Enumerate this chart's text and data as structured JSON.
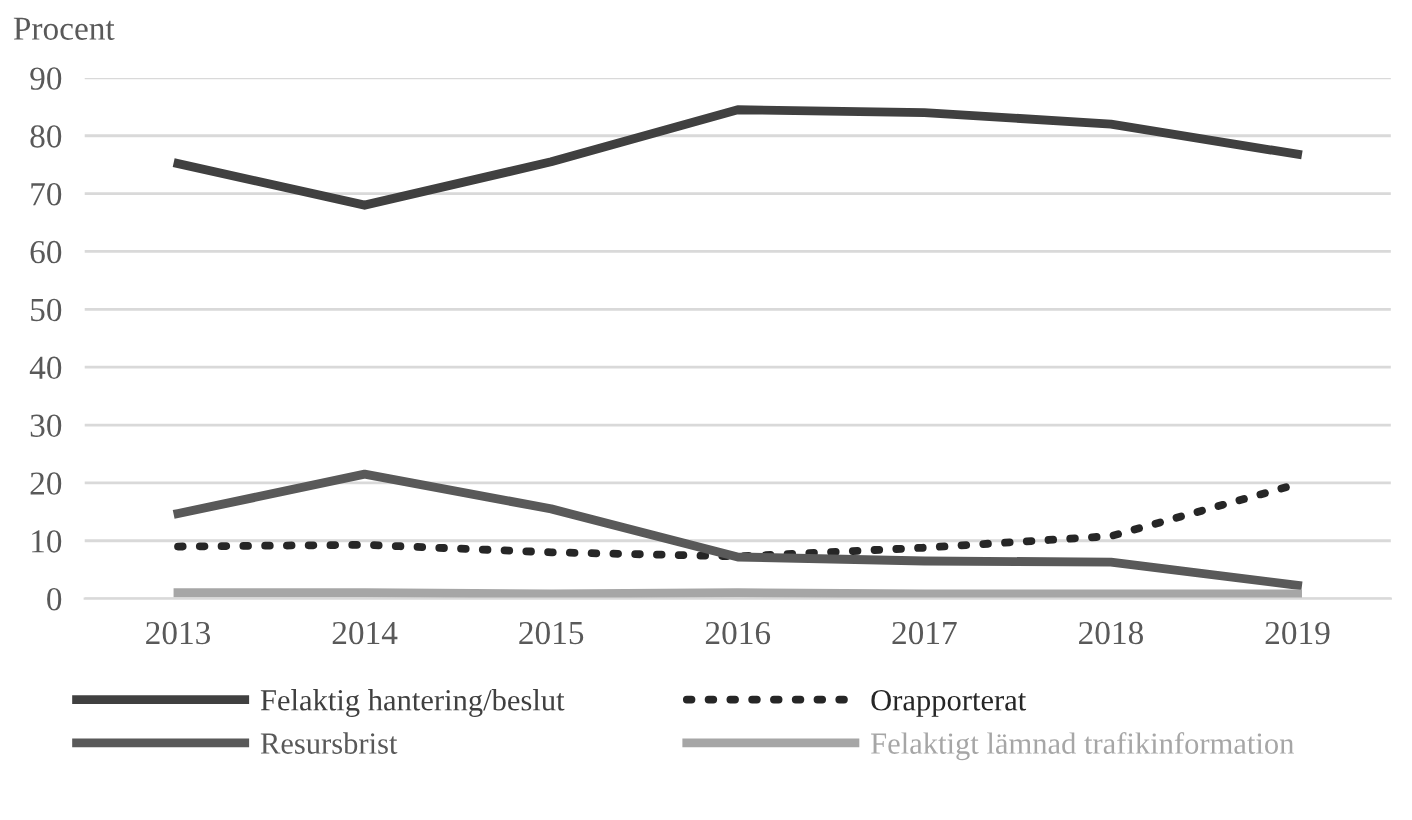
{
  "chart_data": {
    "type": "line",
    "ylabel": "Procent",
    "categories": [
      "2013",
      "2014",
      "2015",
      "2016",
      "2017",
      "2018",
      "2019"
    ],
    "series": [
      {
        "name": "Felaktig hantering/beslut",
        "color": "#404040",
        "line_style": "solid",
        "values": [
          75.2,
          68,
          75.5,
          84.5,
          84,
          82,
          76.8
        ]
      },
      {
        "name": "Orapporterat",
        "color": "#262626",
        "line_style": "dotted",
        "values": [
          9,
          9.3,
          8,
          7.3,
          8.8,
          10.8,
          19.8
        ]
      },
      {
        "name": "Resursbrist",
        "color": "#595959",
        "line_style": "solid",
        "values": [
          14.7,
          21.5,
          15.5,
          7.2,
          6.5,
          6.3,
          2.3
        ]
      },
      {
        "name": "Felaktigt lämnad trafikinformation",
        "color": "#a6a6a6",
        "line_style": "solid",
        "values": [
          1,
          1,
          0.8,
          1,
          0.8,
          0.8,
          0.8
        ]
      }
    ],
    "ylim": [
      0,
      90
    ],
    "yticks": [
      0,
      10,
      20,
      30,
      40,
      50,
      60,
      70,
      80,
      90
    ],
    "grid": "y",
    "legend": "bottom",
    "marker": "none"
  }
}
